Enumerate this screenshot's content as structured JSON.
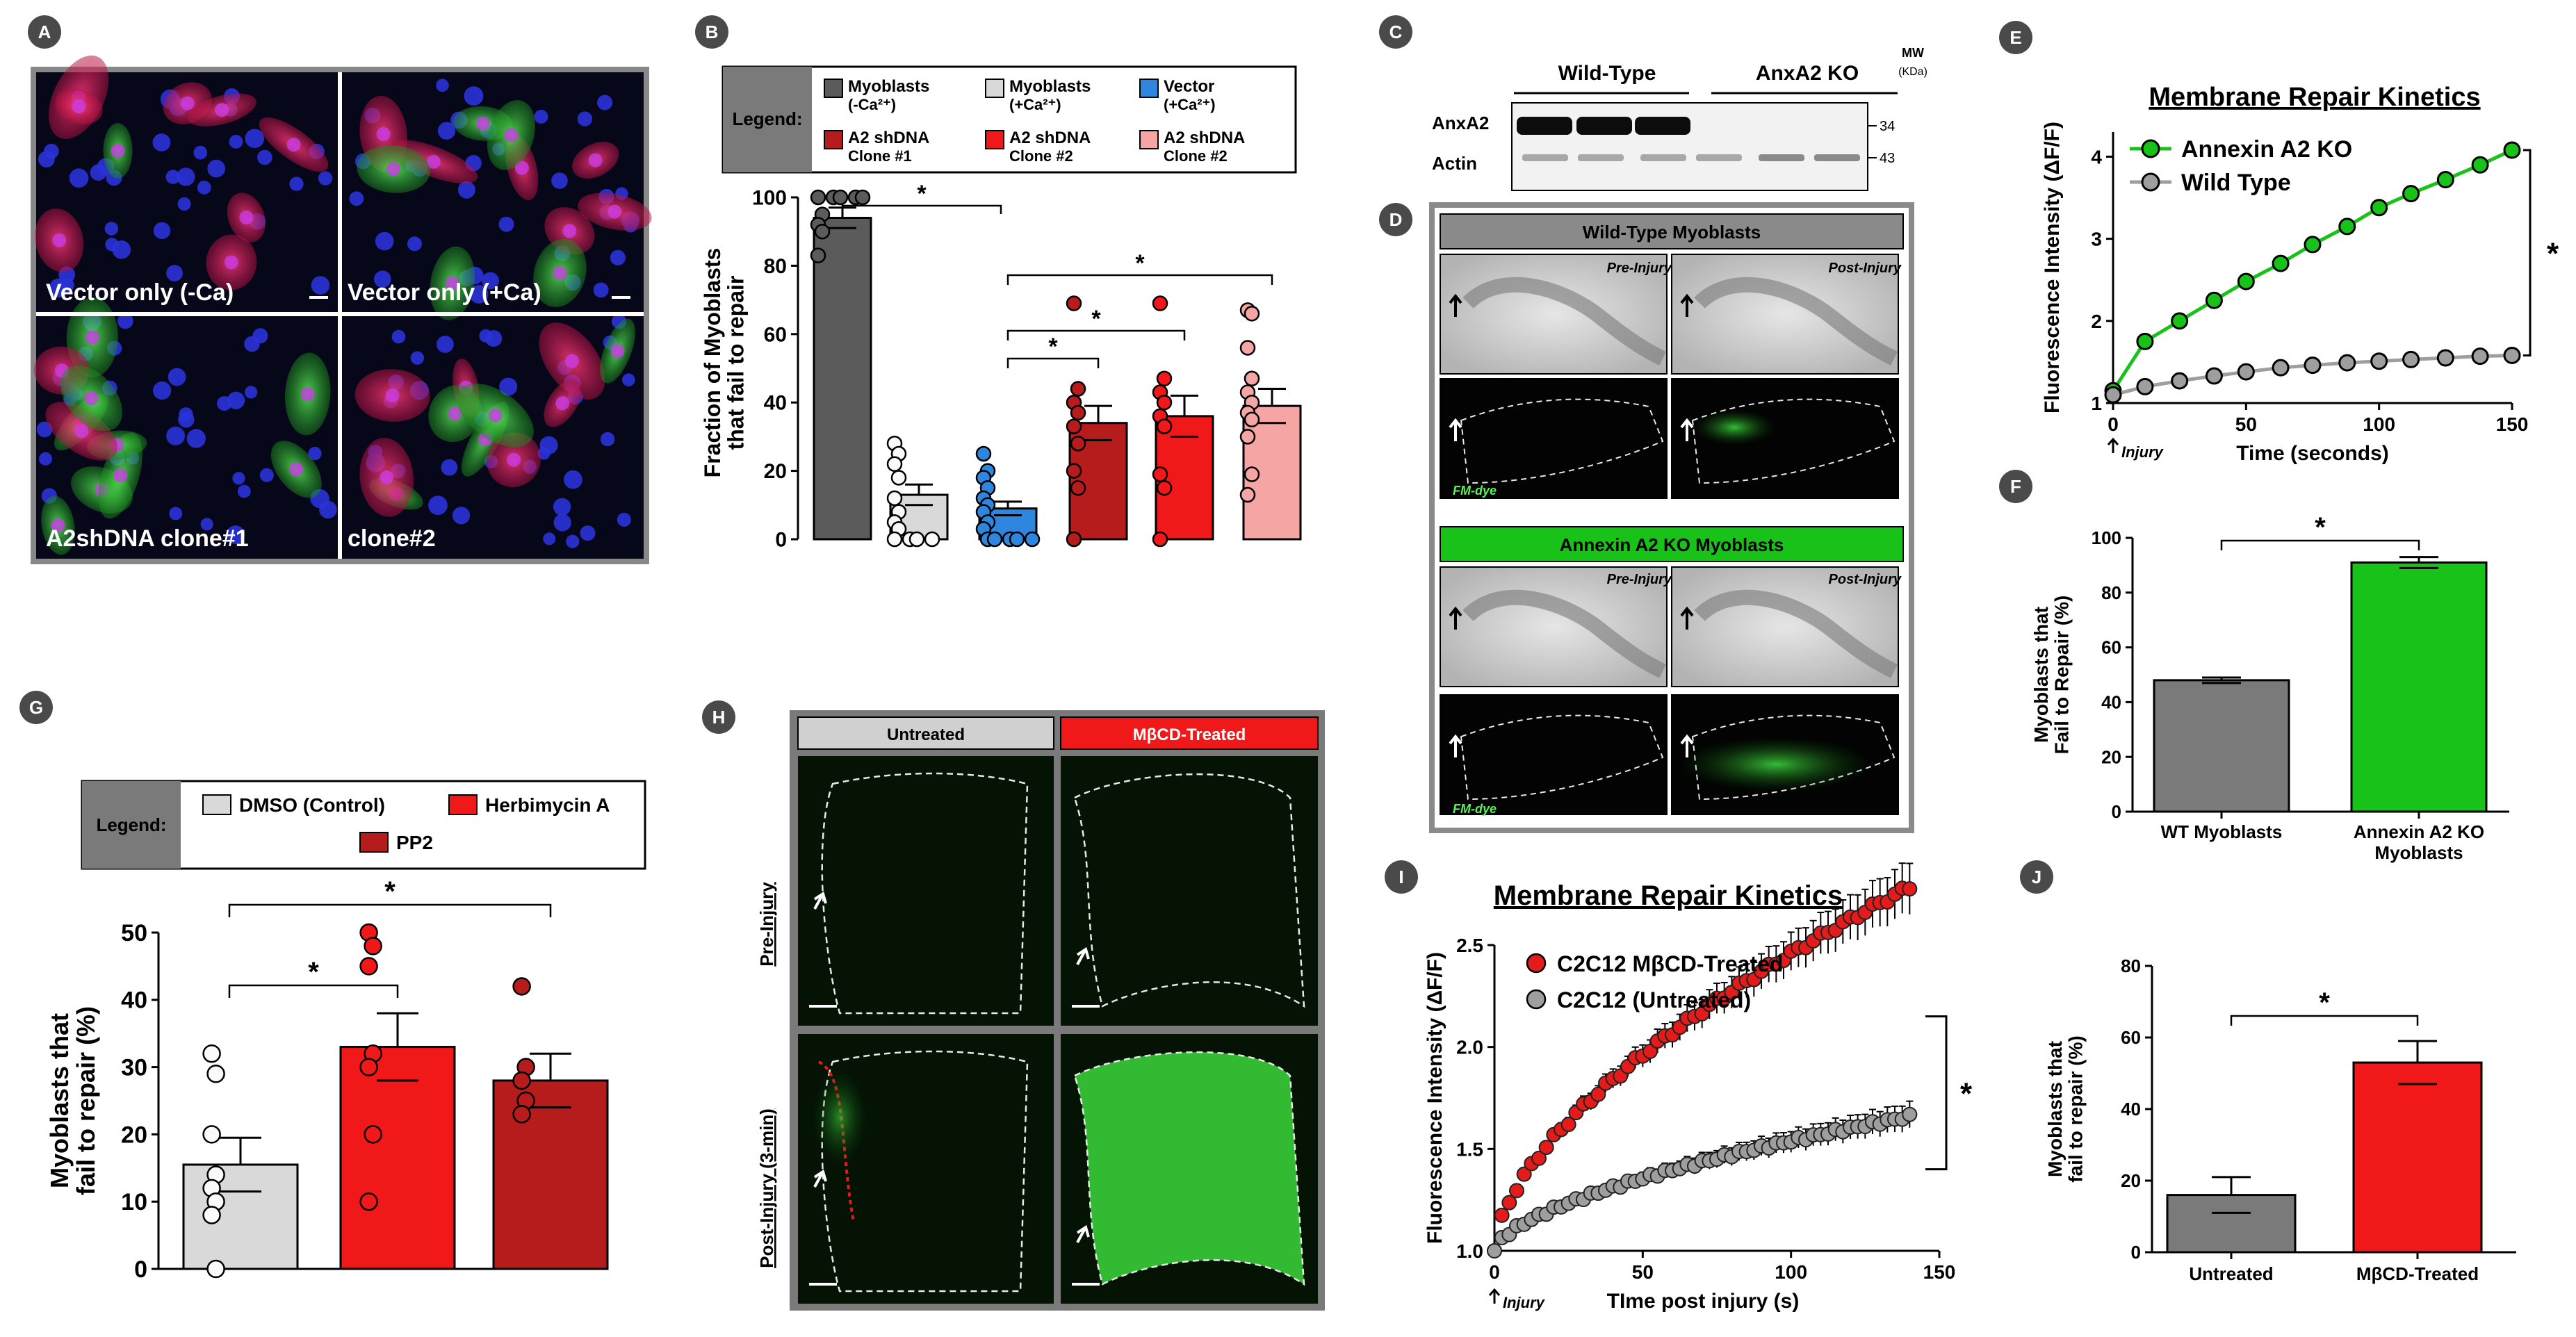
{
  "figure": {
    "panel_letters": {
      "A": "A",
      "B": "B",
      "C": "C",
      "D": "D",
      "E": "E",
      "F": "F",
      "G": "G",
      "H": "H",
      "I": "I",
      "J": "J"
    },
    "star": "*",
    "legend_label": "Legend:"
  },
  "panel_a": {
    "labels": [
      "Vector only (-Ca)",
      "Vector only (+Ca)",
      "A2shDNA clone#1",
      "clone#2"
    ]
  },
  "panel_c": {
    "groups": [
      "Wild-Type",
      "AnxA2 KO"
    ],
    "rows": [
      "AnxA2",
      "Actin"
    ],
    "mw_header": [
      "MW",
      "(KDa)"
    ],
    "mw_values": [
      "34",
      "43"
    ]
  },
  "panel_d": {
    "top_header": "Wild-Type Myoblasts",
    "bottom_header": "Annexin A2 KO Myoblasts",
    "pre": "Pre-Injury",
    "post": "Post-Injury",
    "dye": "FM-dye"
  },
  "panel_h": {
    "col_headers": [
      "Untreated",
      "MβCD-Treated"
    ],
    "row_labels": [
      "Pre-Injury",
      "Post-Injury (3-min)"
    ]
  },
  "chart_data": [
    {
      "panel": "B",
      "type": "bar",
      "title": "",
      "ylabel": "Fraction of Myoblasts that fail to repair",
      "ylim": [
        0,
        100
      ],
      "yticks": [
        0,
        20,
        40,
        60,
        80,
        100
      ],
      "legend": [
        {
          "name": "Myoblasts (-Ca²⁺)",
          "color": "#5b5b5b"
        },
        {
          "name": "Myoblasts (+Ca²⁺)",
          "color": "#d9d9d9"
        },
        {
          "name": "Vector (+Ca²⁺)",
          "color": "#2e86de"
        },
        {
          "name": "A2 shDNA Clone #1",
          "color": "#b71c1c"
        },
        {
          "name": "A2 shDNA Clone #2",
          "color": "#f01818"
        },
        {
          "name": "A2 shDNA Clone #2",
          "color": "#f6a5a5"
        }
      ],
      "values": [
        94,
        13,
        9,
        34,
        36,
        39
      ],
      "errors": [
        3,
        3,
        2,
        5,
        6,
        5
      ],
      "points": [
        [
          100,
          100,
          100,
          100,
          100,
          95,
          92,
          90,
          83
        ],
        [
          28,
          25,
          22,
          18,
          12,
          8,
          5,
          3,
          0,
          0,
          0,
          0
        ],
        [
          25,
          20,
          18,
          15,
          12,
          10,
          8,
          5,
          3,
          0,
          0,
          0,
          0,
          0
        ],
        [
          69,
          44,
          40,
          37,
          33,
          28,
          20,
          15,
          0
        ],
        [
          69,
          47,
          43,
          40,
          36,
          33,
          19,
          15,
          0
        ],
        [
          67,
          66,
          56,
          47,
          43,
          40,
          37,
          35,
          30,
          19,
          13
        ]
      ],
      "significance": [
        "*",
        "*",
        "*",
        "*"
      ]
    },
    {
      "panel": "E",
      "type": "line",
      "title": "Membrane Repair Kinetics",
      "xlabel": "Time (seconds)",
      "ylabel": "Fluorescence Intensity (ΔF/F)",
      "xlim": [
        0,
        150
      ],
      "ylim": [
        1,
        4.3
      ],
      "xticks": [
        0,
        50,
        100,
        150
      ],
      "yticks": [
        1,
        2,
        3,
        4
      ],
      "x": [
        0,
        12,
        25,
        38,
        50,
        63,
        75,
        88,
        100,
        112,
        125,
        138,
        150
      ],
      "series": [
        {
          "name": "Annexin A2 KO",
          "color": "#19c219",
          "values": [
            1.15,
            1.75,
            2.0,
            2.25,
            2.48,
            2.7,
            2.93,
            3.15,
            3.38,
            3.55,
            3.72,
            3.9,
            4.08
          ]
        },
        {
          "name": "Wild Type",
          "color": "#9e9e9e",
          "values": [
            1.1,
            1.2,
            1.27,
            1.33,
            1.38,
            1.43,
            1.46,
            1.49,
            1.51,
            1.53,
            1.55,
            1.57,
            1.58
          ]
        }
      ],
      "annotation": "Injury",
      "significance": "*"
    },
    {
      "panel": "F",
      "type": "bar",
      "ylabel": "Myoblasts that Fail to Repair (%)",
      "ylim": [
        0,
        100
      ],
      "yticks": [
        0,
        20,
        40,
        60,
        80,
        100
      ],
      "categories": [
        "WT Myoblasts",
        "Annexin A2 KO Myoblasts"
      ],
      "values": [
        48,
        91
      ],
      "errors": [
        1,
        2
      ],
      "colors": [
        "#7a7a7a",
        "#19c219"
      ],
      "significance": "*"
    },
    {
      "panel": "G",
      "type": "bar",
      "ylabel": "Myoblasts that fail to repair (%)",
      "ylim": [
        0,
        50
      ],
      "yticks": [
        0,
        10,
        20,
        30,
        40,
        50
      ],
      "legend": [
        {
          "name": "DMSO (Control)",
          "color": "#d9d9d9"
        },
        {
          "name": "Herbimycin A",
          "color": "#f01818"
        },
        {
          "name": "PP2",
          "color": "#b71c1c"
        }
      ],
      "values": [
        15.5,
        33,
        28
      ],
      "errors": [
        4,
        5,
        4
      ],
      "points": [
        [
          32,
          29,
          20,
          14,
          12,
          10,
          8,
          0
        ],
        [
          50,
          48,
          45,
          32,
          30,
          20,
          10
        ],
        [
          42,
          30,
          28,
          25,
          23
        ]
      ],
      "significance": [
        "*",
        "*"
      ]
    },
    {
      "panel": "I",
      "type": "line",
      "title": "Membrane Repair Kinetics",
      "xlabel": "TIme post injury (s)",
      "ylabel": "Fluorescence Intensity (ΔF/F)",
      "xlim": [
        0,
        150
      ],
      "ylim": [
        1.0,
        2.5
      ],
      "xticks": [
        0,
        50,
        100,
        150
      ],
      "yticks": [
        1.0,
        1.5,
        2.0,
        2.5
      ],
      "series": [
        {
          "name": "C2C12 MβCD-Treated",
          "color": "#e31b1b",
          "a": 0.092,
          "b": 0.6
        },
        {
          "name": "C2C12 (Untreated)",
          "color": "#9e9e9e",
          "a": 0.034,
          "b": 0.6
        }
      ],
      "x_end": 140,
      "annotation": "Injury",
      "significance": "*"
    },
    {
      "panel": "J",
      "type": "bar",
      "ylabel": "Myoblasts that fail to repair (%)",
      "ylim": [
        0,
        80
      ],
      "yticks": [
        0,
        20,
        40,
        60,
        80
      ],
      "categories": [
        "Untreated",
        "MβCD-Treated"
      ],
      "values": [
        16,
        53
      ],
      "errors": [
        5,
        6
      ],
      "colors": [
        "#7a7a7a",
        "#f01818"
      ],
      "significance": "*"
    }
  ]
}
